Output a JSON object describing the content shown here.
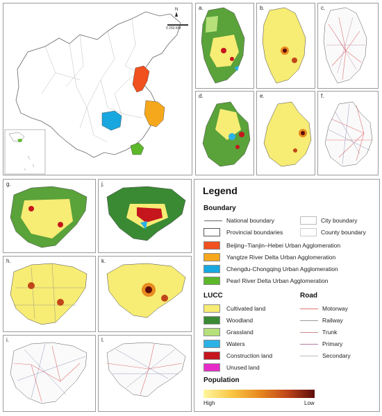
{
  "main_map": {
    "north_label": "N",
    "scale_text": "0     250 KM"
  },
  "panels": [
    {
      "label": "a."
    },
    {
      "label": "b."
    },
    {
      "label": "c."
    },
    {
      "label": "d."
    },
    {
      "label": "e."
    },
    {
      "label": "f."
    },
    {
      "label": "g."
    },
    {
      "label": "j."
    },
    {
      "label": "h."
    },
    {
      "label": "k."
    },
    {
      "label": "i."
    },
    {
      "label": "l."
    }
  ],
  "legend": {
    "title": "Legend",
    "boundary": {
      "heading": "Boundary",
      "national": "National boundary",
      "provincial": "Provincial boundaries",
      "city": "City boundary",
      "county": "County boundary",
      "agglomerations": [
        {
          "label": "Beijing–Tianjin–Hebei Urban Agglomeration",
          "color": "#f0511e"
        },
        {
          "label": "Yangtze River Delta Urban Agglomeration",
          "color": "#f5a81c"
        },
        {
          "label": "Chengdu-Chongqing Urban Agglomeration",
          "color": "#19a7e0"
        },
        {
          "label": "Pearl River Delta Urban Agglomeration",
          "color": "#5cb82a"
        }
      ]
    },
    "lucc": {
      "heading": "LUCC",
      "items": [
        {
          "label": "Cultivated land",
          "color": "#f7ec74"
        },
        {
          "label": "Woodland",
          "color": "#3a8a34"
        },
        {
          "label": "Grassland",
          "color": "#b6e07a"
        },
        {
          "label": "Waters",
          "color": "#2ab2e6"
        },
        {
          "label": "Construction land",
          "color": "#c4161c"
        },
        {
          "label": "Unused land",
          "color": "#e62bc8"
        }
      ]
    },
    "road": {
      "heading": "Road",
      "items": [
        {
          "label": "Motorway",
          "color": "#e07070"
        },
        {
          "label": "Railway",
          "color": "#9a9a9a"
        },
        {
          "label": "Trunk",
          "color": "#c98a8a"
        },
        {
          "label": "Primary",
          "color": "#b07aa0"
        },
        {
          "label": "Secondary",
          "color": "#bbbbbb"
        }
      ]
    },
    "population": {
      "heading": "Population",
      "high": "High",
      "low": "Low"
    }
  }
}
